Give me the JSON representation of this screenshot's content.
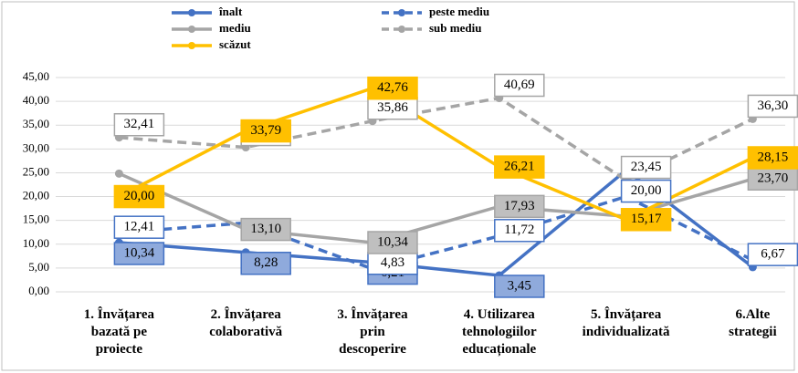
{
  "chart_data": {
    "type": "line",
    "categories": [
      [
        "1. Învățarea",
        "bazată pe",
        "proiecte"
      ],
      [
        "2. Învățarea",
        "colaborativă"
      ],
      [
        "3. Învățarea",
        "prin",
        "descoperire"
      ],
      [
        "4. Utilizarea",
        "tehnologiilor",
        "educaționale"
      ],
      [
        "5. Învățarea",
        "individualizată"
      ],
      [
        "6.Alte",
        "strategii"
      ]
    ],
    "series": [
      {
        "name": "înalt",
        "color": "#4472c4",
        "dash": false,
        "label_fill": "#8faadc",
        "values": [
          10.34,
          8.28,
          6.21,
          3.45,
          25.52,
          5.19
        ],
        "value_labels": [
          "10,34",
          "8,28",
          "6,21",
          "3,45",
          null,
          null
        ]
      },
      {
        "name": "peste mediu",
        "color": "#4472c4",
        "dash": true,
        "label_fill": "#ffffff",
        "values": [
          12.41,
          14.48,
          4.83,
          11.72,
          20.0,
          6.67
        ],
        "value_labels": [
          "12,41",
          null,
          "4,83",
          "11,72",
          "20,00",
          "6,67"
        ]
      },
      {
        "name": "mediu",
        "color": "#a5a5a5",
        "dash": false,
        "label_fill": "#bfbfbf",
        "values": [
          24.83,
          13.1,
          10.34,
          17.93,
          15.86,
          23.7
        ],
        "value_labels": [
          null,
          "13,10",
          "10,34",
          "17,93",
          null,
          "23,70"
        ]
      },
      {
        "name": "sub mediu",
        "color": "#a5a5a5",
        "dash": true,
        "label_fill": "#ffffff",
        "values": [
          32.41,
          30.34,
          35.86,
          40.69,
          23.45,
          36.3
        ],
        "value_labels": [
          "32,41",
          "30,34",
          "35,86",
          "40,69",
          "23,45",
          "36,30"
        ]
      },
      {
        "name": "scăzut",
        "color": "#ffc000",
        "dash": false,
        "label_fill": "#ffc000",
        "values": [
          20.0,
          33.79,
          42.76,
          26.21,
          15.17,
          28.15
        ],
        "value_labels": [
          "20,00",
          "33,79",
          "42,76",
          "26,21",
          "15,17",
          "28,15"
        ]
      }
    ],
    "ylim": [
      0,
      45
    ],
    "yticks": [
      {
        "value": 0,
        "label": "0,00"
      },
      {
        "value": 5,
        "label": "5,00"
      },
      {
        "value": 10,
        "label": "10,00"
      },
      {
        "value": 15,
        "label": "15,00"
      },
      {
        "value": 20,
        "label": "20,00"
      },
      {
        "value": 25,
        "label": "25,00"
      },
      {
        "value": 30,
        "label": "30,00"
      },
      {
        "value": 35,
        "label": "35,00"
      },
      {
        "value": 40,
        "label": "40,00"
      },
      {
        "value": 45,
        "label": "45,00"
      }
    ],
    "grid": true,
    "legend": "top"
  }
}
